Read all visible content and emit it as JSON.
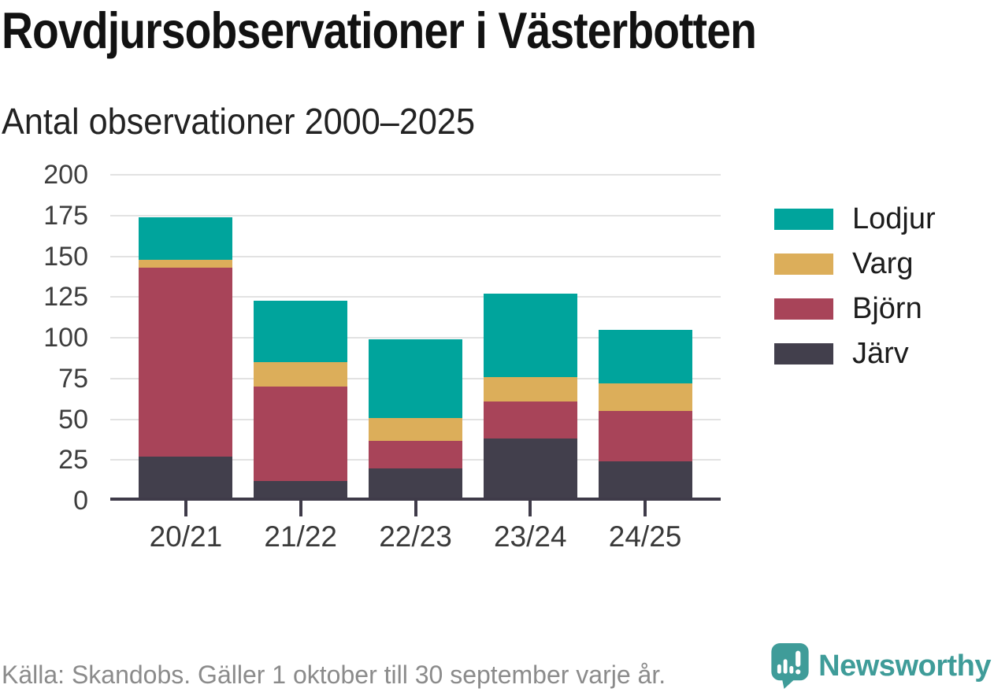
{
  "header": {
    "title": "Rovdjursobservationer i Västerbotten",
    "subtitle": "Antal observationer 2000–2025"
  },
  "chart_data": {
    "type": "bar",
    "stacked": true,
    "title": "Rovdjursobservationer i Västerbotten",
    "subtitle": "Antal observationer 2000–2025",
    "categories": [
      "20/21",
      "21/22",
      "22/23",
      "23/24",
      "24/25"
    ],
    "series": [
      {
        "name": "Järv",
        "color": "#423f4c",
        "values": [
          25,
          10,
          18,
          36,
          22
        ]
      },
      {
        "name": "Björn",
        "color": "#a84459",
        "values": [
          116,
          58,
          17,
          23,
          31
        ]
      },
      {
        "name": "Varg",
        "color": "#dcae5a",
        "values": [
          5,
          15,
          14,
          15,
          17
        ]
      },
      {
        "name": "Lodjur",
        "color": "#00a49c",
        "values": [
          26,
          38,
          48,
          51,
          33
        ]
      }
    ],
    "totals": [
      172,
      121,
      97,
      125,
      103
    ],
    "legend_order": [
      "Lodjur",
      "Varg",
      "Björn",
      "Järv"
    ],
    "legend_position": "right",
    "xlabel": "",
    "ylabel": "",
    "ylim": [
      0,
      200
    ],
    "y_ticks": [
      0,
      25,
      50,
      75,
      100,
      125,
      150,
      175,
      200
    ],
    "grid": true
  },
  "footer": {
    "source": "Källa: Skandobs. Gäller 1 oktober till 30 september varje år.",
    "brand": "Newsworthy"
  },
  "colors": {
    "lodjur_teal": "#00a49c",
    "varg_gold": "#dcae5a",
    "bjorn_maroon": "#a84459",
    "jarv_dark": "#423f4c",
    "axis": "#3f3b49",
    "gridline": "#e2e2e2",
    "brand_teal": "#3f9c99",
    "muted_text": "#8b8b8b"
  }
}
